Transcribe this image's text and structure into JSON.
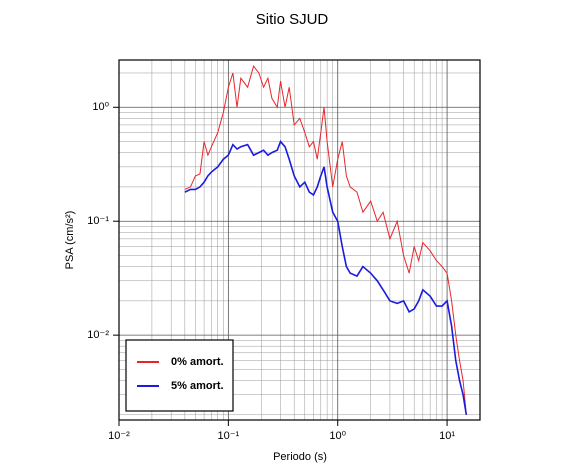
{
  "chart_data": {
    "type": "line",
    "title": "Sitio SJUD",
    "x_label": "Periodo (s)",
    "y_label": "PSA (cm/s²)",
    "x_scale": "log",
    "y_scale": "log",
    "grid": true,
    "minor_grid": true,
    "legend_position": "lower left",
    "xlim": [
      0.01,
      20
    ],
    "ylim": [
      0.0018,
      2.6
    ],
    "xticks": [
      {
        "value": 0.01,
        "label": "10⁻²"
      },
      {
        "value": 0.1,
        "label": "10⁻¹"
      },
      {
        "value": 1,
        "label": "10⁰"
      },
      {
        "value": 10,
        "label": "10¹"
      }
    ],
    "yticks": [
      {
        "value": 0.01,
        "label": "10⁻²"
      },
      {
        "value": 0.1,
        "label": "10⁻¹"
      },
      {
        "value": 1,
        "label": "10⁰"
      }
    ],
    "x": [
      0.04,
      0.045,
      0.05,
      0.055,
      0.06,
      0.065,
      0.07,
      0.08,
      0.09,
      0.1,
      0.11,
      0.12,
      0.13,
      0.15,
      0.17,
      0.19,
      0.21,
      0.23,
      0.25,
      0.28,
      0.3,
      0.33,
      0.36,
      0.4,
      0.45,
      0.5,
      0.55,
      0.6,
      0.65,
      0.7,
      0.75,
      0.8,
      0.9,
      1.0,
      1.1,
      1.2,
      1.3,
      1.5,
      1.7,
      2.0,
      2.3,
      2.6,
      3.0,
      3.5,
      4.0,
      4.5,
      5.0,
      5.5,
      6.0,
      7.0,
      8.0,
      9.0,
      10,
      11,
      12,
      13,
      14,
      15
    ],
    "series": [
      {
        "name": "0% amort.",
        "color": "#e8262a",
        "width": 1,
        "values": [
          0.19,
          0.2,
          0.25,
          0.26,
          0.5,
          0.38,
          0.45,
          0.6,
          0.9,
          1.5,
          2.0,
          1.0,
          1.8,
          1.5,
          2.3,
          2.0,
          1.5,
          1.8,
          1.2,
          1.0,
          1.7,
          1.0,
          1.5,
          0.7,
          0.8,
          0.6,
          0.45,
          0.5,
          0.35,
          0.6,
          1.0,
          0.5,
          0.2,
          0.35,
          0.5,
          0.25,
          0.2,
          0.18,
          0.12,
          0.15,
          0.1,
          0.12,
          0.07,
          0.1,
          0.05,
          0.035,
          0.06,
          0.045,
          0.065,
          0.055,
          0.045,
          0.04,
          0.035,
          0.02,
          0.01,
          0.006,
          0.004,
          0.002
        ]
      },
      {
        "name": "5% amort.",
        "color": "#1a1ae0",
        "width": 1.6,
        "values": [
          0.18,
          0.19,
          0.19,
          0.2,
          0.22,
          0.25,
          0.27,
          0.3,
          0.35,
          0.38,
          0.47,
          0.43,
          0.45,
          0.47,
          0.38,
          0.4,
          0.42,
          0.38,
          0.4,
          0.42,
          0.5,
          0.45,
          0.35,
          0.25,
          0.2,
          0.22,
          0.18,
          0.17,
          0.2,
          0.25,
          0.3,
          0.2,
          0.12,
          0.1,
          0.06,
          0.04,
          0.035,
          0.033,
          0.04,
          0.035,
          0.03,
          0.025,
          0.02,
          0.019,
          0.02,
          0.016,
          0.017,
          0.02,
          0.025,
          0.022,
          0.018,
          0.018,
          0.02,
          0.012,
          0.006,
          0.004,
          0.003,
          0.002
        ]
      }
    ]
  }
}
